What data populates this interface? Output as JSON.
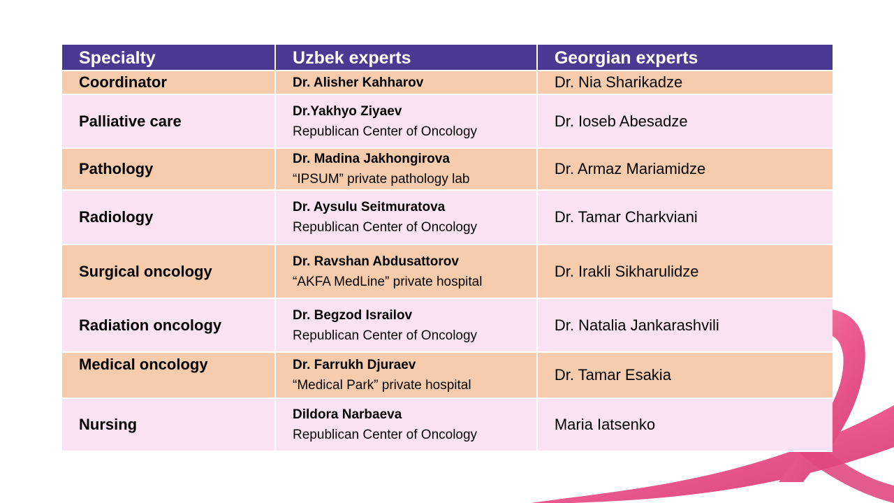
{
  "table": {
    "headers": [
      "Specialty",
      "Uzbek experts",
      "Georgian experts"
    ],
    "colors": {
      "header": "#4b3a93",
      "peach": "#f6ccac",
      "pink": "#fce3f4",
      "ribbon": "#ec5a8f"
    },
    "icon": "pink-ribbon-icon",
    "rows": [
      {
        "specialty": "Coordinator",
        "uzbek_name": "Dr. Alisher Kahharov",
        "uzbek_affiliation": "",
        "georgian": "Dr. Nia Sharikadze"
      },
      {
        "specialty": "Palliative care",
        "uzbek_name": "Dr.Yakhyo Ziyaev",
        "uzbek_affiliation": "Republican Center of Oncology",
        "georgian": "Dr. Ioseb Abesadze"
      },
      {
        "specialty": "Pathology",
        "uzbek_name": "Dr. Madina Jakhongirova",
        "uzbek_affiliation": "“IPSUM” private pathology lab",
        "georgian": "Dr. Armaz Mariamidze"
      },
      {
        "specialty": "Radiology",
        "uzbek_name": "Dr. Aysulu Seitmuratova",
        "uzbek_affiliation": "Republican Center of Oncology",
        "georgian": "Dr. Tamar Charkviani"
      },
      {
        "specialty": "Surgical oncology",
        "uzbek_name": "Dr. Ravshan Abdusattorov",
        "uzbek_affiliation": "“AKFA MedLine” private hospital",
        "georgian": "Dr. Irakli Sikharulidze"
      },
      {
        "specialty": "Radiation oncology",
        "uzbek_name": "Dr. Begzod Israilov",
        "uzbek_affiliation": "Republican Center of Oncology",
        "georgian": "Dr. Natalia Jankarashvili"
      },
      {
        "specialty": "Medical oncology",
        "uzbek_name": "Dr. Farrukh Djuraev",
        "uzbek_affiliation": "“Medical Park” private hospital",
        "georgian": "Dr. Tamar Esakia"
      },
      {
        "specialty": "Nursing",
        "uzbek_name": "Dildora Narbaeva",
        "uzbek_affiliation": "Republican Center of Oncology",
        "georgian": "Maria Iatsenko"
      }
    ]
  }
}
